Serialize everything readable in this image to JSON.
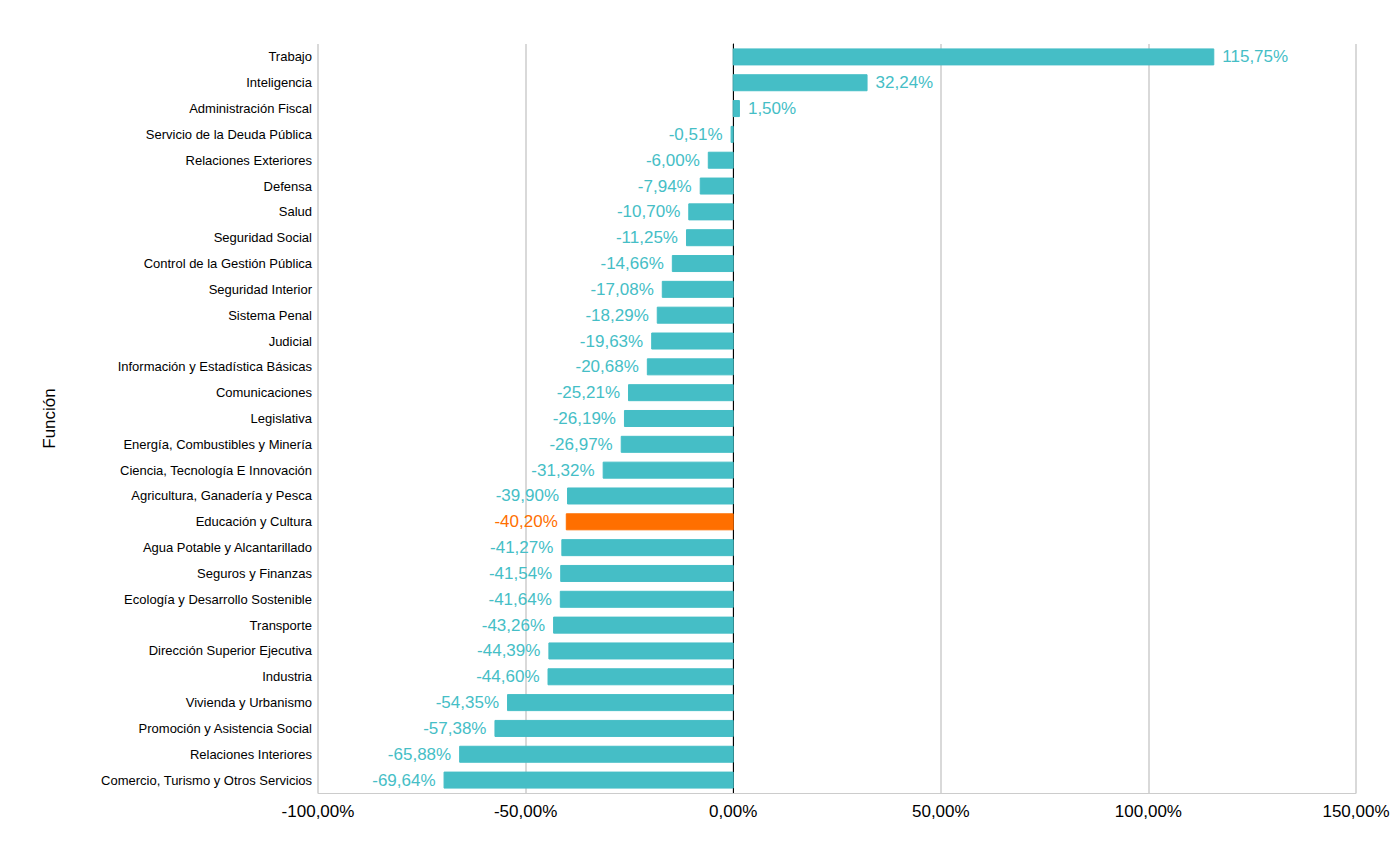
{
  "chart_data": {
    "type": "bar",
    "orientation": "horizontal",
    "y_label": "Función",
    "categories": [
      "Trabajo",
      "Inteligencia",
      "Administración Fiscal",
      "Servicio de la Deuda Pública",
      "Relaciones Exteriores",
      "Defensa",
      "Salud",
      "Seguridad Social",
      "Control de la Gestión Pública",
      "Seguridad Interior",
      "Sistema Penal",
      "Judicial",
      "Información y Estadística Básicas",
      "Comunicaciones",
      "Legislativa",
      "Energía, Combustibles y Minería",
      "Ciencia, Tecnología E Innovación",
      "Agricultura, Ganadería y Pesca",
      "Educación y Cultura",
      "Agua Potable y Alcantarillado",
      "Seguros y Finanzas",
      "Ecología y Desarrollo Sostenible",
      "Transporte",
      "Dirección Superior Ejecutiva",
      "Industria",
      "Vivienda y Urbanismo",
      "Promoción y Asistencia Social",
      "Relaciones Interiores",
      "Comercio, Turismo y Otros Servicios"
    ],
    "values": [
      115.75,
      32.24,
      1.5,
      -0.51,
      -6.0,
      -7.94,
      -10.7,
      -11.25,
      -14.66,
      -17.08,
      -18.29,
      -19.63,
      -20.68,
      -25.21,
      -26.19,
      -26.97,
      -31.32,
      -39.9,
      -40.2,
      -41.27,
      -41.54,
      -41.64,
      -43.26,
      -44.39,
      -44.6,
      -54.35,
      -57.38,
      -65.88,
      -69.64
    ],
    "value_labels": [
      "115,75%",
      "32,24%",
      "1,50%",
      "-0,51%",
      "-6,00%",
      "-7,94%",
      "-10,70%",
      "-11,25%",
      "-14,66%",
      "-17,08%",
      "-18,29%",
      "-19,63%",
      "-20,68%",
      "-25,21%",
      "-26,19%",
      "-26,97%",
      "-31,32%",
      "-39,90%",
      "-40,20%",
      "-41,27%",
      "-41,54%",
      "-41,64%",
      "-43,26%",
      "-44,39%",
      "-44,60%",
      "-54,35%",
      "-57,38%",
      "-65,88%",
      "-69,64%"
    ],
    "colors": [
      "#45bec6",
      "#45bec6",
      "#45bec6",
      "#45bec6",
      "#45bec6",
      "#45bec6",
      "#45bec6",
      "#45bec6",
      "#45bec6",
      "#45bec6",
      "#45bec6",
      "#45bec6",
      "#45bec6",
      "#45bec6",
      "#45bec6",
      "#45bec6",
      "#45bec6",
      "#45bec6",
      "#ff6f00",
      "#45bec6",
      "#45bec6",
      "#45bec6",
      "#45bec6",
      "#45bec6",
      "#45bec6",
      "#45bec6",
      "#45bec6",
      "#45bec6",
      "#45bec6"
    ],
    "xlim": [
      -100,
      150
    ],
    "xticks": [
      {
        "value": -100,
        "label": "-100,00%"
      },
      {
        "value": -50,
        "label": "-50,00%"
      },
      {
        "value": 0,
        "label": "0,00%"
      },
      {
        "value": 50,
        "label": "50,00%"
      },
      {
        "value": 100,
        "label": "100,00%"
      },
      {
        "value": 150,
        "label": "150,00%"
      }
    ],
    "data_labels": true,
    "grid": true
  }
}
